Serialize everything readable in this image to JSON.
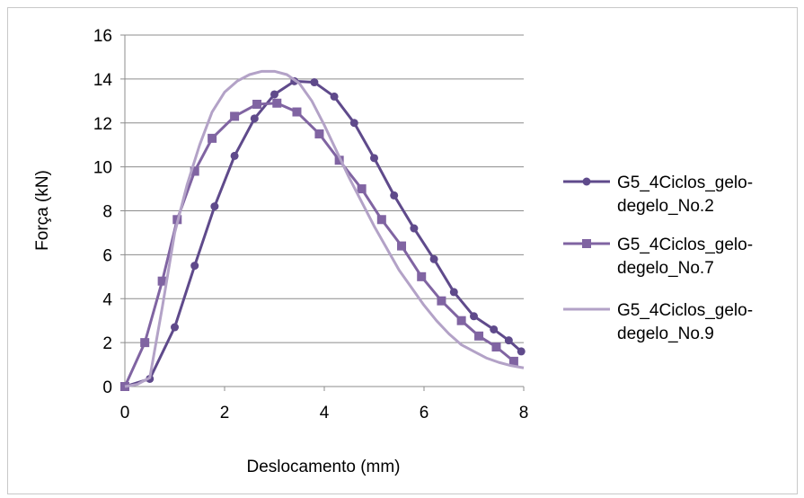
{
  "chart_data": {
    "type": "line",
    "title": "",
    "xlabel": "Deslocamento (mm)",
    "ylabel": "Força (kN)",
    "xlim": [
      0,
      8
    ],
    "ylim": [
      0,
      16
    ],
    "x_ticks": [
      0,
      2,
      4,
      6,
      8
    ],
    "y_ticks": [
      0,
      2,
      4,
      6,
      8,
      10,
      12,
      14,
      16
    ],
    "grid": "horizontal",
    "legend_position": "right",
    "series": [
      {
        "name_lines": [
          "G5_4Ciclos_gelo-",
          "degelo_No.2"
        ],
        "color": "#5f4a8b",
        "marker": "circle",
        "x": [
          0,
          0.5,
          1.0,
          1.4,
          1.8,
          2.2,
          2.6,
          3.0,
          3.4,
          3.8,
          4.2,
          4.6,
          5.0,
          5.4,
          5.8,
          6.2,
          6.6,
          7.0,
          7.4,
          7.7,
          7.95
        ],
        "y": [
          0,
          0.35,
          2.7,
          5.5,
          8.2,
          10.5,
          12.2,
          13.3,
          13.9,
          13.85,
          13.2,
          12.0,
          10.4,
          8.7,
          7.2,
          5.8,
          4.3,
          3.2,
          2.6,
          2.1,
          1.6
        ]
      },
      {
        "name_lines": [
          "G5_4Ciclos_gelo-",
          "degelo_No.7"
        ],
        "color": "#8064a2",
        "marker": "square",
        "x": [
          0,
          0.4,
          0.75,
          1.05,
          1.4,
          1.75,
          2.2,
          2.65,
          3.05,
          3.45,
          3.9,
          4.3,
          4.75,
          5.15,
          5.55,
          5.95,
          6.35,
          6.75,
          7.1,
          7.45,
          7.8
        ],
        "y": [
          0,
          2.0,
          4.8,
          7.6,
          9.8,
          11.3,
          12.3,
          12.85,
          12.9,
          12.5,
          11.5,
          10.3,
          9.0,
          7.6,
          6.4,
          5.0,
          3.9,
          3.0,
          2.3,
          1.8,
          1.15
        ]
      },
      {
        "name_lines": [
          "G5_4Ciclos_gelo-",
          "degelo_No.9"
        ],
        "color": "#b3a2c7",
        "marker": "none",
        "x": [
          0,
          0.25,
          0.5,
          0.75,
          1.0,
          1.25,
          1.5,
          1.75,
          2.0,
          2.25,
          2.5,
          2.75,
          3.0,
          3.25,
          3.5,
          3.75,
          4.0,
          4.25,
          4.5,
          4.75,
          5.0,
          5.25,
          5.5,
          5.75,
          6.0,
          6.25,
          6.5,
          6.75,
          7.0,
          7.25,
          7.5,
          7.75,
          8.0
        ],
        "y": [
          0,
          0.1,
          0.4,
          3.6,
          7.0,
          9.2,
          11.0,
          12.5,
          13.4,
          13.9,
          14.2,
          14.35,
          14.35,
          14.2,
          13.8,
          13.0,
          11.9,
          10.7,
          9.5,
          8.4,
          7.3,
          6.3,
          5.3,
          4.5,
          3.7,
          3.0,
          2.4,
          1.9,
          1.6,
          1.3,
          1.1,
          0.95,
          0.85
        ]
      }
    ]
  }
}
